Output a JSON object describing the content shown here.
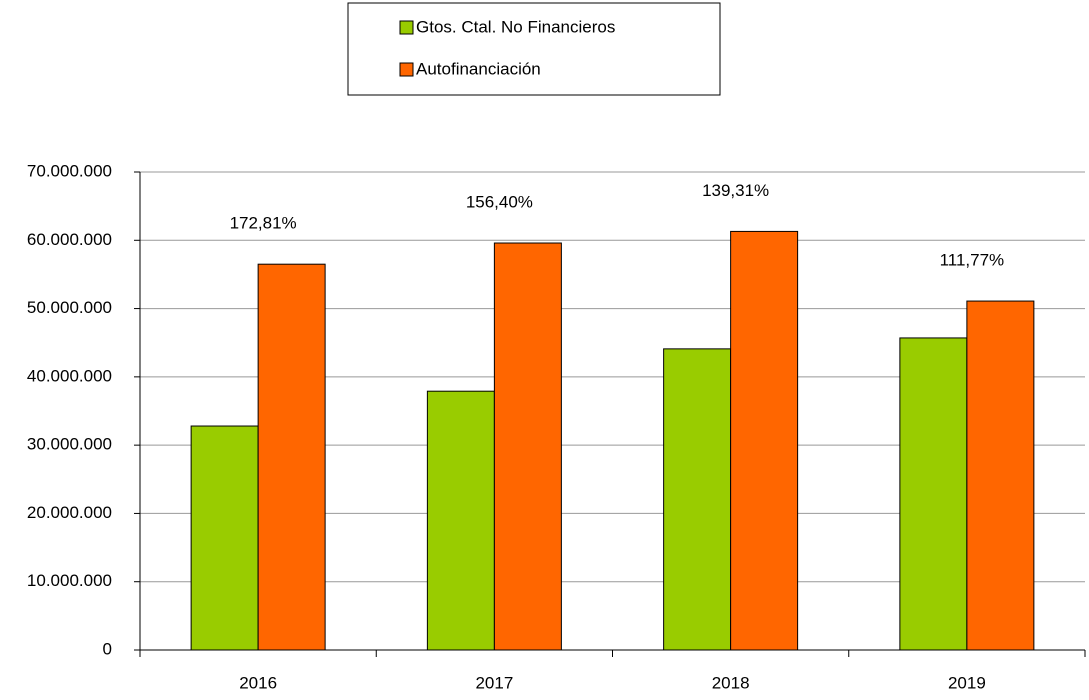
{
  "chart_data": {
    "type": "bar",
    "categories": [
      "2016",
      "2017",
      "2018",
      "2019"
    ],
    "series": [
      {
        "name": "Gtos. Ctal. No Financieros",
        "color": "#99cc00",
        "values": [
          32800000,
          37900000,
          44100000,
          45700000
        ]
      },
      {
        "name": "Autofinanciación",
        "color": "#ff6600",
        "values": [
          56500000,
          59600000,
          61300000,
          51100000
        ]
      }
    ],
    "annotations": [
      "172,81%",
      "156,40%",
      "139,31%",
      "111,77%"
    ],
    "ylim": [
      0,
      70000000
    ],
    "yticks": [
      0,
      {
        "value": 10000000,
        "label": "10.000.000"
      },
      {
        "value": 20000000,
        "label": "20.000.000"
      },
      {
        "value": 30000000,
        "label": "30.000.000"
      },
      {
        "value": 40000000,
        "label": "40.000.000"
      },
      {
        "value": 50000000,
        "label": "50.000.000"
      },
      {
        "value": 60000000,
        "label": "60.000.000"
      },
      {
        "value": 70000000,
        "label": "70.000.000"
      }
    ],
    "grid": true,
    "legend": "top"
  }
}
